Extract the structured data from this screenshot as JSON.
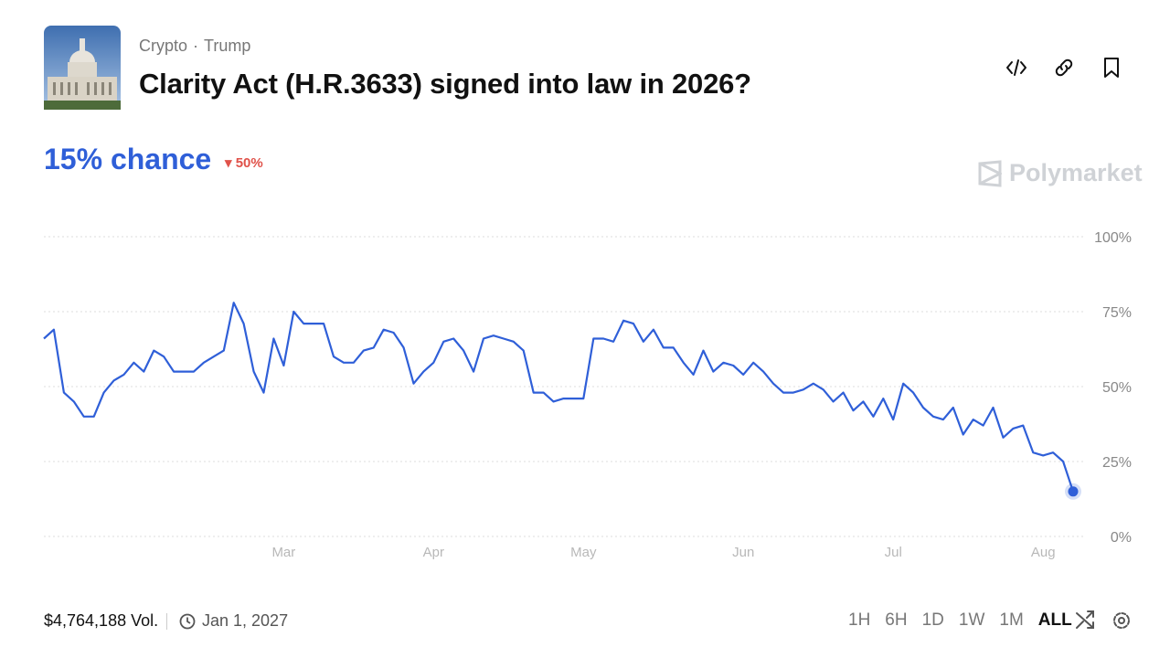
{
  "header": {
    "breadcrumbs": [
      "Crypto",
      "Trump"
    ],
    "separator": "·",
    "title": "Clarity Act (H.R.3633) signed into law in 2026?"
  },
  "odds": {
    "chance": "15% chance",
    "change": "50%"
  },
  "brand": "Polymarket",
  "footer": {
    "volume": "$4,764,188 Vol.",
    "end_date": "Jan 1, 2027"
  },
  "controls": {
    "ranges": [
      "1H",
      "6H",
      "1D",
      "1W",
      "1M",
      "ALL"
    ],
    "active_range": "ALL"
  },
  "chart_data": {
    "type": "line",
    "categories": [
      null,
      null,
      null,
      null,
      null,
      null,
      null,
      null,
      null,
      null,
      null,
      null,
      null,
      null,
      null,
      null,
      null,
      null,
      null,
      null,
      null,
      null,
      null,
      null,
      "Mar",
      null,
      null,
      null,
      null,
      null,
      null,
      null,
      null,
      null,
      null,
      null,
      null,
      null,
      null,
      "Apr",
      null,
      null,
      null,
      null,
      null,
      null,
      null,
      null,
      null,
      null,
      null,
      null,
      null,
      null,
      "May",
      null,
      null,
      null,
      null,
      null,
      null,
      null,
      null,
      null,
      null,
      null,
      null,
      null,
      null,
      null,
      "Jun",
      null,
      null,
      null,
      null,
      null,
      null,
      null,
      null,
      null,
      null,
      null,
      null,
      null,
      null,
      "Jul",
      null,
      null,
      null,
      null,
      null,
      null,
      null,
      null,
      null,
      null,
      null,
      null,
      null,
      null,
      "Aug",
      null,
      null,
      null
    ],
    "values": [
      66,
      69,
      48,
      45,
      40,
      40,
      48,
      52,
      54,
      58,
      55,
      62,
      60,
      55,
      55,
      55,
      58,
      60,
      62,
      78,
      71,
      55,
      48,
      66,
      57,
      75,
      71,
      71,
      71,
      60,
      58,
      58,
      62,
      63,
      69,
      68,
      63,
      51,
      55,
      58,
      65,
      66,
      62,
      55,
      66,
      67,
      66,
      65,
      62,
      48,
      48,
      45,
      46,
      46,
      46,
      66,
      66,
      65,
      72,
      71,
      65,
      69,
      63,
      63,
      58,
      54,
      62,
      55,
      58,
      57,
      54,
      58,
      55,
      51,
      48,
      48,
      49,
      51,
      49,
      45,
      48,
      42,
      45,
      40,
      46,
      39,
      51,
      48,
      43,
      40,
      39,
      43,
      34,
      39,
      37,
      43,
      33,
      36,
      37,
      28,
      27,
      28,
      25,
      15
    ],
    "color": "#2f5fd8",
    "ylim": [
      0,
      100
    ],
    "yticks": [
      {
        "value": 0,
        "label": "0%"
      },
      {
        "value": 25,
        "label": "25%"
      },
      {
        "value": 50,
        "label": "50%"
      },
      {
        "value": 75,
        "label": "75%"
      },
      {
        "value": 100,
        "label": "100%"
      }
    ],
    "grid": true
  }
}
